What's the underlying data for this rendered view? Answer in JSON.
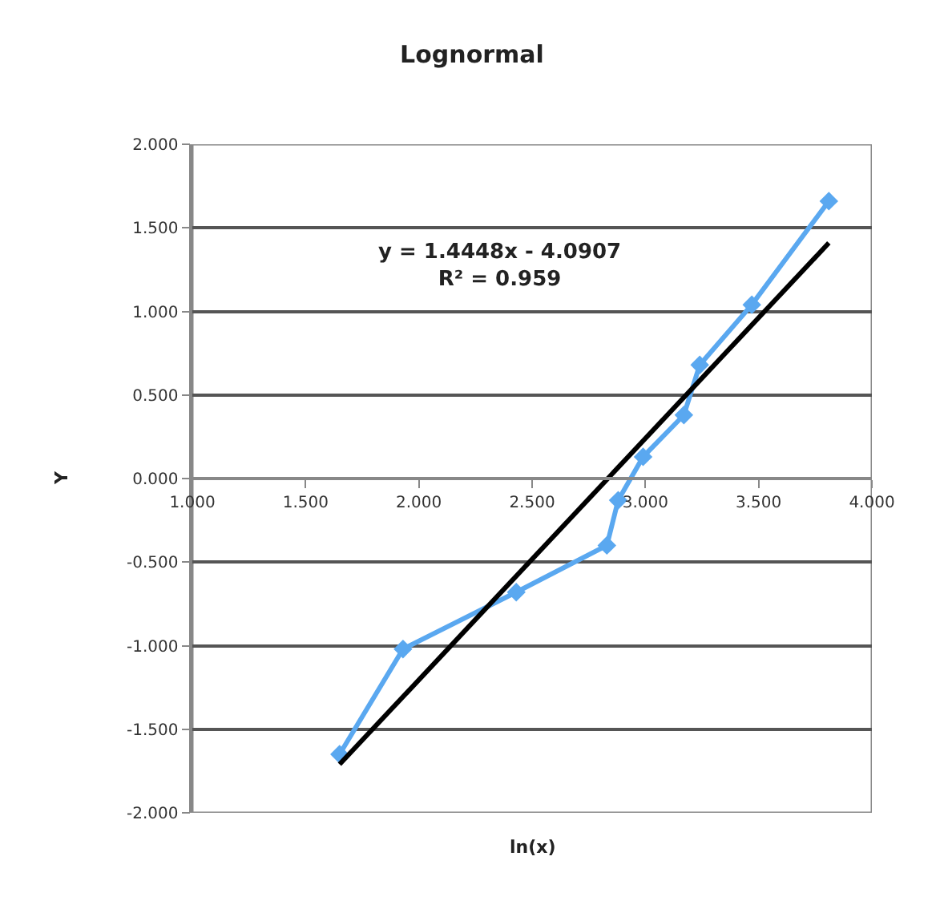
{
  "chart_data": {
    "type": "line",
    "title": "Lognormal",
    "xlabel": "ln(x)",
    "ylabel": "Y",
    "xlim": [
      1.0,
      4.0
    ],
    "ylim": [
      -2.0,
      2.0
    ],
    "xticks": [
      {
        "value": 1.0,
        "label": "1.000"
      },
      {
        "value": 1.5,
        "label": "1.500"
      },
      {
        "value": 2.0,
        "label": "2.000"
      },
      {
        "value": 2.5,
        "label": "2.500"
      },
      {
        "value": 3.0,
        "label": "3.000"
      },
      {
        "value": 3.5,
        "label": "3.500"
      },
      {
        "value": 4.0,
        "label": "4.000"
      }
    ],
    "yticks": [
      {
        "value": 2.0,
        "label": "2.000"
      },
      {
        "value": 1.5,
        "label": "1.500"
      },
      {
        "value": 1.0,
        "label": "1.000"
      },
      {
        "value": 0.5,
        "label": "0.500"
      },
      {
        "value": 0.0,
        "label": "0.000"
      },
      {
        "value": -0.5,
        "label": "-0.500"
      },
      {
        "value": -1.0,
        "label": "-1.000"
      },
      {
        "value": -1.5,
        "label": "-1.500"
      },
      {
        "value": -2.0,
        "label": "-2.000"
      }
    ],
    "grid": "y",
    "series": [
      {
        "color": "#5aa8f0",
        "marker": "diamond",
        "x": [
          1.65,
          1.93,
          2.43,
          2.83,
          2.88,
          2.99,
          3.17,
          3.24,
          3.47,
          3.81
        ],
        "values": [
          -1.65,
          -1.02,
          -0.68,
          -0.4,
          -0.13,
          0.13,
          0.38,
          0.68,
          1.04,
          1.66
        ]
      },
      {
        "color": "#000000",
        "marker": "none",
        "x": [
          1.65,
          3.81
        ],
        "values": [
          -1.71,
          1.41
        ]
      }
    ],
    "annotations": [
      "y = 1.4448x - 4.0907\nR² = 0.959"
    ]
  }
}
